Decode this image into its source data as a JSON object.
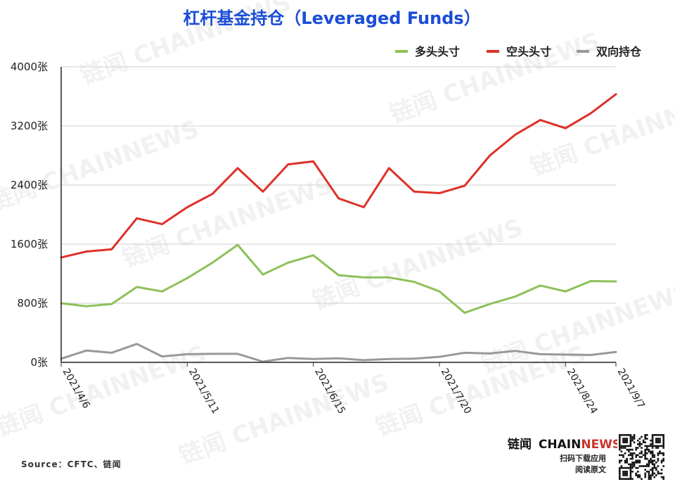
{
  "chart_data": {
    "type": "line",
    "title": "杠杆基金持仓（Leveraged Funds）",
    "ylim": [
      0,
      4000
    ],
    "y_ticks": [
      0,
      800,
      1600,
      2400,
      3200,
      4000
    ],
    "y_tick_suffix": "张",
    "x_tick_labels": [
      "2021/4/6",
      "2021/5/11",
      "2021/6/15",
      "2021/7/20",
      "2021/8/24",
      "2021/9/7"
    ],
    "x_tick_indices": [
      0,
      5,
      10,
      15,
      20,
      22
    ],
    "grid": true,
    "legend_position": "top-right",
    "x": [
      "2021/4/6",
      "2021/4/13",
      "2021/4/20",
      "2021/4/27",
      "2021/5/4",
      "2021/5/11",
      "2021/5/18",
      "2021/5/25",
      "2021/6/1",
      "2021/6/8",
      "2021/6/15",
      "2021/6/22",
      "2021/6/29",
      "2021/7/6",
      "2021/7/13",
      "2021/7/20",
      "2021/7/27",
      "2021/8/3",
      "2021/8/10",
      "2021/8/17",
      "2021/8/24",
      "2021/8/31",
      "2021/9/7"
    ],
    "series": [
      {
        "name": "多头头寸",
        "color": "#8dc159",
        "values": [
          800,
          760,
          790,
          1020,
          960,
          1140,
          1350,
          1590,
          1190,
          1350,
          1450,
          1180,
          1150,
          1150,
          1090,
          960,
          670,
          790,
          890,
          1040,
          960,
          1100,
          1095
        ]
      },
      {
        "name": "空头头寸",
        "color": "#dd3129",
        "values": [
          1420,
          1500,
          1530,
          1950,
          1870,
          2100,
          2280,
          2630,
          2310,
          2680,
          2720,
          2220,
          2100,
          2630,
          2310,
          2290,
          2390,
          2800,
          3080,
          3280,
          3170,
          3370,
          3630
        ]
      },
      {
        "name": "双向持仓",
        "color": "#999999",
        "values": [
          50,
          160,
          130,
          250,
          80,
          110,
          115,
          115,
          10,
          60,
          45,
          55,
          30,
          45,
          50,
          75,
          130,
          120,
          155,
          110,
          105,
          100,
          140
        ]
      }
    ]
  },
  "footer": {
    "source": "Source：CFTC、链闻",
    "brand_cn": "链闻",
    "brand_en1": "CHAIN",
    "brand_en2": "NEWS",
    "tagline1": "扫码下载应用",
    "tagline2": "阅读原文"
  },
  "watermark_text": "链闻 CHAINNEWS"
}
